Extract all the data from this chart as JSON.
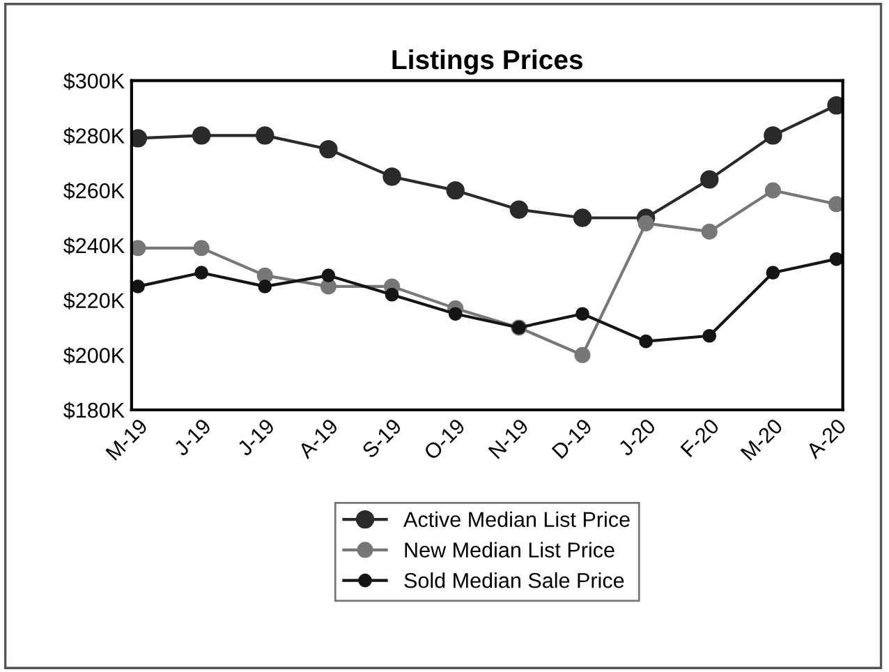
{
  "chart_data": {
    "type": "line",
    "title": "Listings Prices",
    "categories": [
      "M-19",
      "J-19",
      "J-19",
      "A-19",
      "S-19",
      "O-19",
      "N-19",
      "D-19",
      "J-20",
      "F-20",
      "M-20",
      "A-20"
    ],
    "series": [
      {
        "name": "Active Median List Price",
        "color": "#2a2a2a",
        "values": [
          279,
          280,
          280,
          275,
          265,
          260,
          253,
          250,
          250,
          264,
          280,
          291
        ]
      },
      {
        "name": "New Median List Price",
        "color": "#777777",
        "values": [
          239,
          239,
          229,
          225,
          225,
          217,
          210,
          200,
          248,
          245,
          260,
          255
        ]
      },
      {
        "name": "Sold Median Sale Price",
        "color": "#151515",
        "values": [
          225,
          230,
          225,
          229,
          222,
          215,
          210,
          215,
          205,
          207,
          230,
          235
        ]
      }
    ],
    "ylim": [
      180,
      300
    ],
    "yticks": [
      {
        "value": 180,
        "label": "$180K"
      },
      {
        "value": 200,
        "label": "$200K"
      },
      {
        "value": 220,
        "label": "$220K"
      },
      {
        "value": 240,
        "label": "$240K"
      },
      {
        "value": 260,
        "label": "$260K"
      },
      {
        "value": 280,
        "label": "$280K"
      },
      {
        "value": 300,
        "label": "$300K"
      }
    ],
    "grid": false,
    "legend": "bottom",
    "marker": "circle",
    "line_style": "solid"
  }
}
